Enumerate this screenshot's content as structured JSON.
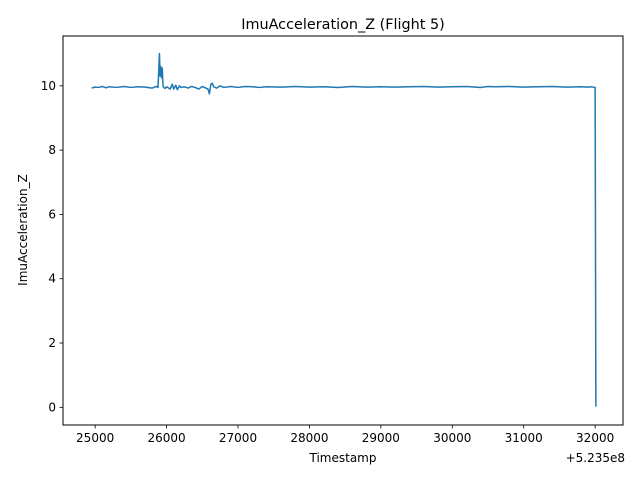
{
  "chart_data": {
    "type": "line",
    "title": "ImuAcceleration_Z (Flight 5)",
    "xlabel": "Timestamp",
    "ylabel": "ImuAcceleration_Z",
    "x_offset_label": "+5.235e8",
    "xlim": [
      24550,
      32390
    ],
    "ylim": [
      -0.55,
      11.55
    ],
    "xticks": [
      25000,
      26000,
      27000,
      28000,
      29000,
      30000,
      31000,
      32000
    ],
    "xtick_labels": [
      "25000",
      "26000",
      "27000",
      "28000",
      "29000",
      "30000",
      "31000",
      "32000"
    ],
    "yticks": [
      0,
      2,
      4,
      6,
      8,
      10
    ],
    "ytick_labels": [
      "0",
      "2",
      "4",
      "6",
      "8",
      "10"
    ],
    "grid": false,
    "line_color": "#1f77b4",
    "series": [
      {
        "x": [
          24950,
          25000,
          25050,
          25100,
          25150,
          25200,
          25300,
          25400,
          25500,
          25600,
          25700,
          25800,
          25850,
          25880,
          25890,
          25900,
          25910,
          25920,
          25930,
          25940,
          25950,
          25960,
          25980,
          26000,
          26050,
          26080,
          26100,
          26130,
          26150,
          26180,
          26200,
          26250,
          26300,
          26350,
          26400,
          26450,
          26500,
          26550,
          26580,
          26600,
          26620,
          26640,
          26660,
          26700,
          26750,
          26800,
          26900,
          27000,
          27100,
          27200,
          27300,
          27400,
          27600,
          27800,
          28000,
          28200,
          28400,
          28600,
          28800,
          29000,
          29200,
          29400,
          29600,
          29800,
          30000,
          30200,
          30400,
          30500,
          30600,
          30800,
          31000,
          31200,
          31400,
          31600,
          31800,
          31900,
          31950,
          31990,
          32000,
          32010
        ],
        "values": [
          9.93,
          9.96,
          9.95,
          9.98,
          9.94,
          9.97,
          9.95,
          9.98,
          9.95,
          9.97,
          9.96,
          9.93,
          9.98,
          9.95,
          10.45,
          11.0,
          10.3,
          10.6,
          10.25,
          10.55,
          10.0,
          9.95,
          9.92,
          9.97,
          9.9,
          10.05,
          9.9,
          10.02,
          9.88,
          10.0,
          9.95,
          9.97,
          9.93,
          9.98,
          9.95,
          9.9,
          9.98,
          9.93,
          9.9,
          9.75,
          10.05,
          10.08,
          9.97,
          9.93,
          10.0,
          9.95,
          9.98,
          9.95,
          9.98,
          9.97,
          9.95,
          9.97,
          9.96,
          9.98,
          9.96,
          9.97,
          9.95,
          9.98,
          9.96,
          9.97,
          9.96,
          9.97,
          9.98,
          9.96,
          9.97,
          9.98,
          9.95,
          9.98,
          9.97,
          9.98,
          9.96,
          9.97,
          9.98,
          9.96,
          9.97,
          9.96,
          9.97,
          9.95,
          9.95,
          0.02
        ]
      }
    ]
  }
}
